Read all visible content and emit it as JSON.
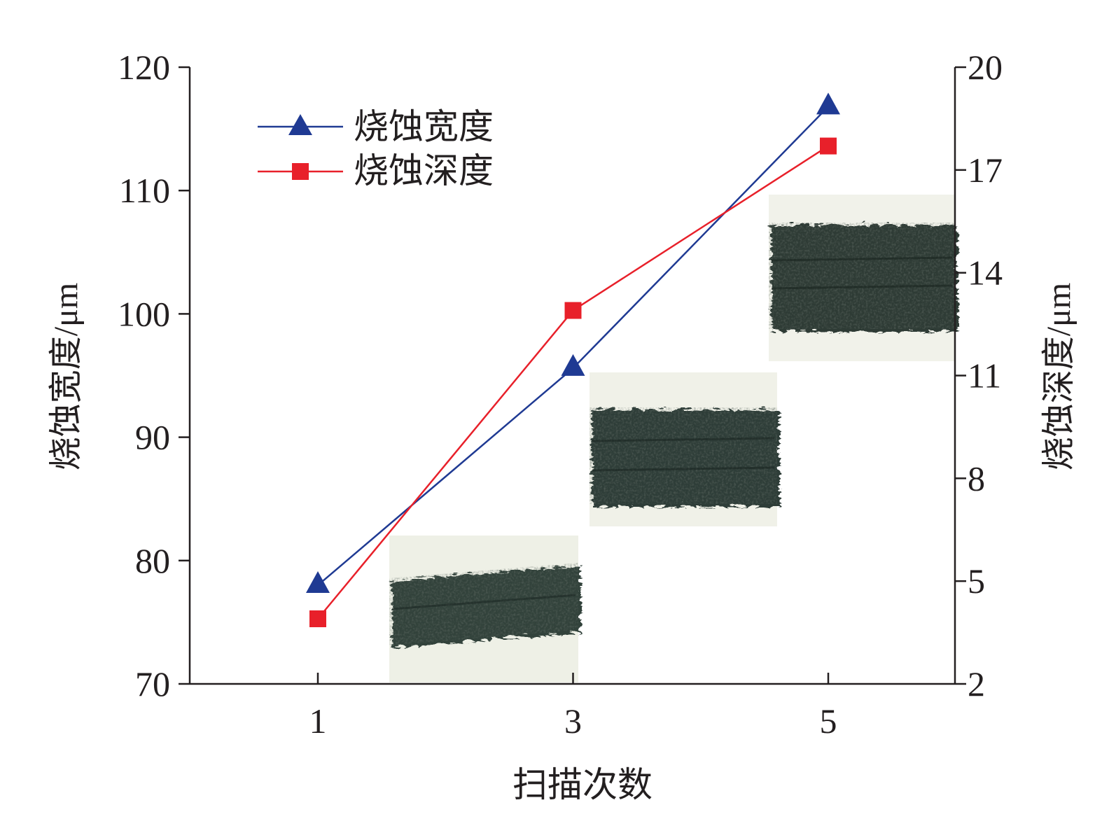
{
  "chart_data": {
    "type": "line",
    "x": [
      1,
      3,
      5
    ],
    "xlabel": "扫描次数",
    "ylabel_left": "烧蚀宽度/μm",
    "ylabel_right": "烧蚀深度/μm",
    "ylim_left": [
      70,
      120
    ],
    "yticks_left": [
      70,
      80,
      90,
      100,
      110,
      120
    ],
    "ylim_right": [
      2,
      20
    ],
    "yticks_right": [
      2,
      5,
      8,
      11,
      14,
      17,
      20
    ],
    "xticks": [
      1,
      3,
      5
    ],
    "grid": false,
    "legend_position": "top-left",
    "series": [
      {
        "name": "烧蚀宽度",
        "axis": "left",
        "marker": "triangle",
        "color": "#1f3a93",
        "values": [
          78.0,
          95.6,
          116.8
        ]
      },
      {
        "name": "烧蚀深度",
        "axis": "right",
        "marker": "square",
        "color": "#e8202a",
        "values": [
          3.9,
          12.9,
          17.7
        ]
      }
    ],
    "insets": [
      {
        "x": 1,
        "description": "micrograph"
      },
      {
        "x": 3,
        "description": "micrograph"
      },
      {
        "x": 5,
        "description": "micrograph"
      }
    ]
  }
}
